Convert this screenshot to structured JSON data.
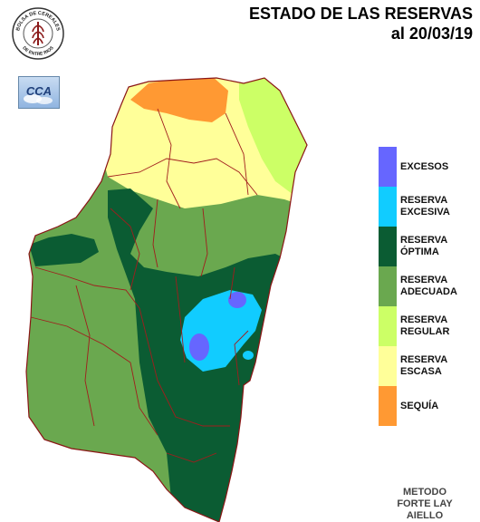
{
  "title": {
    "line1": "ESTADO DE LAS RESERVAS",
    "line2": "al 20/03/19"
  },
  "logos": {
    "bolsa": {
      "top_text": "BOLSA DE CEREALES",
      "bottom_text": "DE ENTRE RIOS"
    },
    "cca": {
      "text": "CCA"
    }
  },
  "legend": [
    {
      "lines": [
        "EXCESOS"
      ],
      "color": "#6666ff"
    },
    {
      "lines": [
        "RESERVA",
        "EXCESIVA"
      ],
      "color": "#11ccff"
    },
    {
      "lines": [
        "RESERVA",
        "ÓPTIMA"
      ],
      "color": "#0b5c33"
    },
    {
      "lines": [
        "RESERVA",
        "ADECUADA"
      ],
      "color": "#6aa84f"
    },
    {
      "lines": [
        "RESERVA",
        "REGULAR"
      ],
      "color": "#ccff66"
    },
    {
      "lines": [
        "RESERVA",
        "ESCASA"
      ],
      "color": "#ffff99"
    },
    {
      "lines": [
        "SEQUÍA"
      ],
      "color": "#ff9933"
    }
  ],
  "method": [
    "METODO",
    "FORTE LAY",
    "AIELLO"
  ]
}
